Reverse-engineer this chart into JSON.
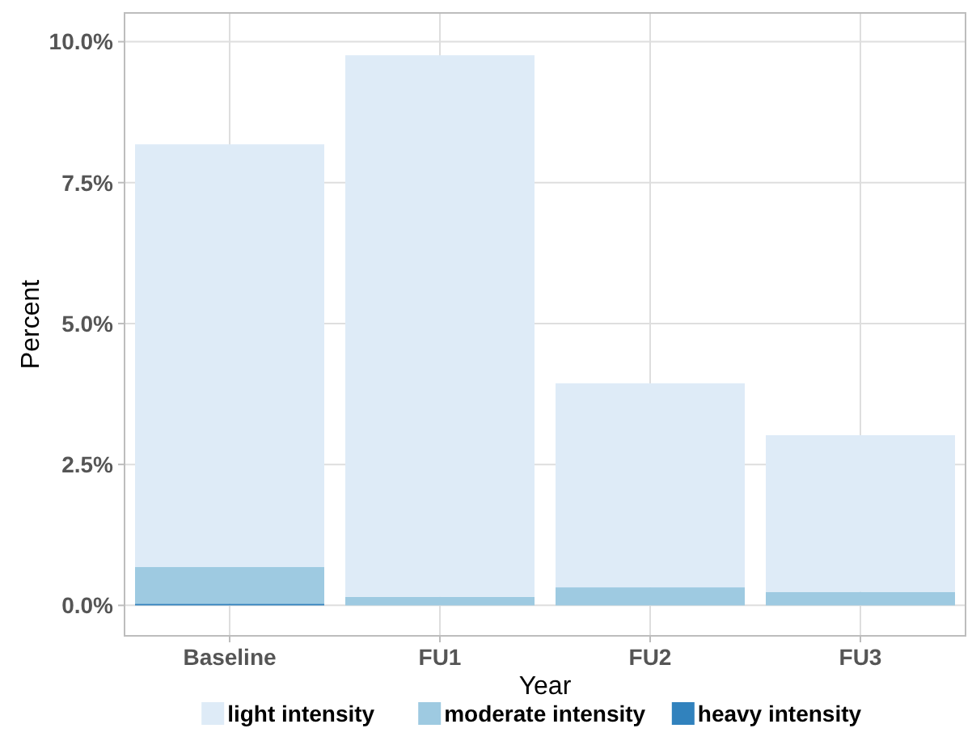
{
  "chart_data": {
    "type": "bar",
    "stacked": true,
    "xlabel": "Year",
    "ylabel": "Percent",
    "categories": [
      "Baseline",
      "FU1",
      "FU2",
      "FU3"
    ],
    "series": [
      {
        "name": "heavy intensity",
        "color": "#3182bd",
        "values": [
          0.03,
          0,
          0,
          0
        ]
      },
      {
        "name": "moderate intensity",
        "color": "#9ecae1",
        "values": [
          0.65,
          0.15,
          0.32,
          0.24
        ]
      },
      {
        "name": "light intensity",
        "color": "#deebf7",
        "values": [
          7.5,
          9.61,
          3.62,
          2.78
        ]
      }
    ],
    "ylim": [
      -0.54,
      10.51
    ],
    "yticks": [
      {
        "value": 0,
        "label": "0.0%"
      },
      {
        "value": 2.5,
        "label": "2.5%"
      },
      {
        "value": 5,
        "label": "5.0%"
      },
      {
        "value": 7.5,
        "label": "7.5%"
      },
      {
        "value": 10,
        "label": "10.0%"
      }
    ],
    "grid": true,
    "legend": "bottom"
  }
}
